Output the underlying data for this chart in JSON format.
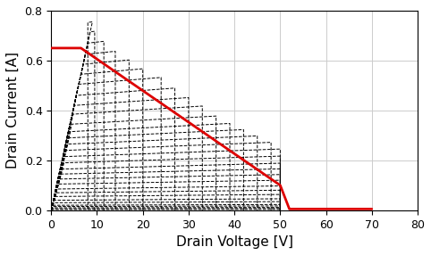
{
  "title": "",
  "xlabel": "Drain Voltage [V]",
  "ylabel": "Drain Current [A]",
  "xlim": [
    0,
    80
  ],
  "ylim": [
    0,
    0.8
  ],
  "xticks": [
    0,
    10,
    20,
    30,
    40,
    50,
    60,
    70,
    80
  ],
  "yticks": [
    0.0,
    0.2,
    0.4,
    0.6,
    0.8
  ],
  "figsize": [
    4.82,
    2.86
  ],
  "dpi": 100,
  "iv_curves": [
    {
      "i_sat": 0.0,
      "v_knee": 0.3,
      "v_max": 50.0
    },
    {
      "i_sat": 0.003,
      "v_knee": 0.3,
      "v_max": 50.0
    },
    {
      "i_sat": 0.006,
      "v_knee": 0.3,
      "v_max": 50.0
    },
    {
      "i_sat": 0.01,
      "v_knee": 0.4,
      "v_max": 50.0
    },
    {
      "i_sat": 0.015,
      "v_knee": 0.4,
      "v_max": 50.0
    },
    {
      "i_sat": 0.02,
      "v_knee": 0.5,
      "v_max": 50.0
    },
    {
      "i_sat": 0.03,
      "v_knee": 0.6,
      "v_max": 50.0
    },
    {
      "i_sat": 0.04,
      "v_knee": 0.7,
      "v_max": 50.0
    },
    {
      "i_sat": 0.055,
      "v_knee": 0.9,
      "v_max": 50.0
    },
    {
      "i_sat": 0.07,
      "v_knee": 1.1,
      "v_max": 50.0
    },
    {
      "i_sat": 0.085,
      "v_knee": 1.3,
      "v_max": 50.0
    },
    {
      "i_sat": 0.105,
      "v_knee": 1.6,
      "v_max": 50.0
    },
    {
      "i_sat": 0.125,
      "v_knee": 1.9,
      "v_max": 50.0
    },
    {
      "i_sat": 0.145,
      "v_knee": 2.2,
      "v_max": 50.0
    },
    {
      "i_sat": 0.165,
      "v_knee": 2.5,
      "v_max": 50.0
    },
    {
      "i_sat": 0.19,
      "v_knee": 2.8,
      "v_max": 50.0
    },
    {
      "i_sat": 0.215,
      "v_knee": 3.0,
      "v_max": 50.0
    },
    {
      "i_sat": 0.24,
      "v_knee": 3.3,
      "v_max": 48.0
    },
    {
      "i_sat": 0.265,
      "v_knee": 3.6,
      "v_max": 45.0
    },
    {
      "i_sat": 0.29,
      "v_knee": 3.9,
      "v_max": 42.0
    },
    {
      "i_sat": 0.315,
      "v_knee": 4.2,
      "v_max": 39.0
    },
    {
      "i_sat": 0.345,
      "v_knee": 4.5,
      "v_max": 36.0
    },
    {
      "i_sat": 0.385,
      "v_knee": 4.8,
      "v_max": 33.0
    },
    {
      "i_sat": 0.42,
      "v_knee": 5.0,
      "v_max": 30.0
    },
    {
      "i_sat": 0.46,
      "v_knee": 5.5,
      "v_max": 27.0
    },
    {
      "i_sat": 0.505,
      "v_knee": 6.0,
      "v_max": 24.0
    },
    {
      "i_sat": 0.545,
      "v_knee": 6.5,
      "v_max": 20.0
    },
    {
      "i_sat": 0.585,
      "v_knee": 7.0,
      "v_max": 17.0
    },
    {
      "i_sat": 0.625,
      "v_knee": 7.5,
      "v_max": 14.0
    },
    {
      "i_sat": 0.67,
      "v_knee": 8.0,
      "v_max": 11.5
    },
    {
      "i_sat": 0.715,
      "v_knee": 8.5,
      "v_max": 9.5
    },
    {
      "i_sat": 0.755,
      "v_knee": 9.0,
      "v_max": 8.0
    }
  ],
  "load_line": {
    "points_vd": [
      0.0,
      6.5,
      50.0,
      52.0,
      70.0
    ],
    "points_id": [
      0.65,
      0.65,
      0.1,
      0.005,
      0.005
    ]
  },
  "iv_color": "black",
  "iv_linestyle": "--",
  "iv_linewidth": 0.7,
  "load_color": "#dd0000",
  "load_linewidth": 2.0,
  "grid_color": "#cccccc",
  "background_color": "#ffffff",
  "xlabel_fontsize": 11,
  "ylabel_fontsize": 11,
  "tick_fontsize": 9
}
